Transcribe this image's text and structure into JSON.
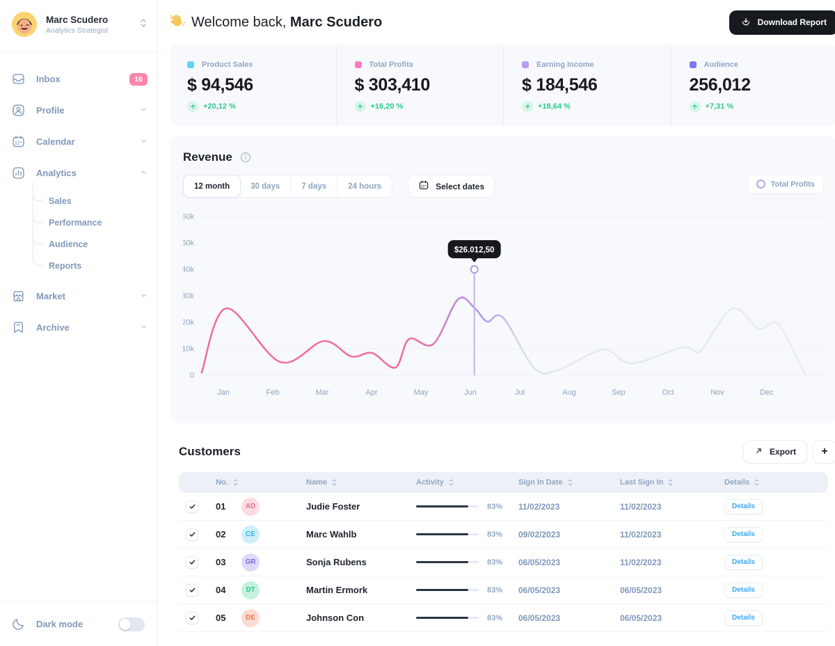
{
  "sidebar": {
    "user": {
      "name": "Marc Scudero",
      "role": "Analytics Strategist"
    },
    "items": [
      {
        "label": "Inbox",
        "badge": "16",
        "badge_color": "#f886ad"
      },
      {
        "label": "Profile"
      },
      {
        "label": "Calendar"
      },
      {
        "label": "Analytics",
        "children": [
          "Sales",
          "Performance",
          "Audience",
          "Reports"
        ]
      },
      {
        "label": "Market"
      },
      {
        "label": "Archive"
      }
    ],
    "dark_mode_label": "Dark mode"
  },
  "header": {
    "welcome_prefix": "Welcome back,",
    "user_name": "Marc Scudero",
    "download_label": "Download Report"
  },
  "stats": [
    {
      "label": "Product Sales",
      "value": "$ 94,546",
      "change": "+20,12 %",
      "dot": "#62d2f5"
    },
    {
      "label": "Total Profits",
      "value": "$ 303,410",
      "change": "+16,20 %",
      "dot": "#f97bbd"
    },
    {
      "label": "Earning Income",
      "value": "$ 184,546",
      "change": "+18,64 %",
      "dot": "#b79cf3"
    },
    {
      "label": "Audience",
      "value": "256,012",
      "change": "+7,31 %",
      "dot": "#7d79ef"
    }
  ],
  "revenue": {
    "title": "Revenue",
    "tabs": [
      {
        "label": "12 month",
        "active": true
      },
      {
        "label": "30 days",
        "active": false
      },
      {
        "label": "7 days",
        "active": false
      },
      {
        "label": "24 hours",
        "active": false
      }
    ],
    "select_dates_label": "Select dates",
    "legend_label": "Total Profits",
    "chart_data": {
      "type": "line",
      "title": "Revenue",
      "categories": [
        "Jan",
        "Feb",
        "Mar",
        "Apr",
        "May",
        "Jun",
        "Jul",
        "Aug",
        "Sep",
        "Oct",
        "Nov",
        "Dec"
      ],
      "series": [
        {
          "name": "Total Profits",
          "values_k": [
            26,
            5,
            13.5,
            8.5,
            13,
            26,
            11.5,
            2.5,
            9.5,
            10.5,
            25,
            19
          ]
        }
      ],
      "ylim_k": [
        0,
        60
      ],
      "yticks": [
        {
          "k": 0,
          "label": "0"
        },
        {
          "k": 10,
          "label": "10k"
        },
        {
          "k": 20,
          "label": "20k"
        },
        {
          "k": 30,
          "label": "30k"
        },
        {
          "k": 40,
          "label": "40k"
        },
        {
          "k": 50,
          "label": "50k"
        },
        {
          "k": 60,
          "label": "60k"
        }
      ],
      "grid": true,
      "legend_position": "top-right",
      "curve_points": [
        [
          0.56,
          1.0
        ],
        [
          1.06,
          25.3
        ],
        [
          2.15,
          5.0
        ],
        [
          3.03,
          12.9
        ],
        [
          3.59,
          7.1
        ],
        [
          4.01,
          8.4
        ],
        [
          4.48,
          2.9
        ],
        [
          4.76,
          13.7
        ],
        [
          5.25,
          11.8
        ],
        [
          5.75,
          28.7
        ],
        [
          6.08,
          25.5
        ],
        [
          6.34,
          20.3
        ],
        [
          6.66,
          21.8
        ],
        [
          7.3,
          2.6
        ],
        [
          7.79,
          2.1
        ],
        [
          8.69,
          9.7
        ],
        [
          9.27,
          4.5
        ],
        [
          10.28,
          10.5
        ],
        [
          10.56,
          8.9
        ],
        [
          10.7,
          10.0
        ],
        [
          11.31,
          25.3
        ],
        [
          11.83,
          17.6
        ],
        [
          12.23,
          19.2
        ],
        [
          12.77,
          0.5
        ]
      ],
      "gradient_stops": [
        [
          0,
          "#ef6fa5"
        ],
        [
          0.36,
          "#ef6fa5"
        ],
        [
          0.43,
          "#bb8fe0"
        ],
        [
          0.47,
          "#b49be8"
        ],
        [
          0.53,
          "#d5deed"
        ],
        [
          0.6,
          "#e2eaf2"
        ],
        [
          1,
          "#e6edf4"
        ]
      ],
      "tooltip": {
        "label": "$26.012,50",
        "month_pos": 6.08,
        "marker_k": 40,
        "bg": "#15181d",
        "line_color": "#c3b2ee"
      }
    }
  },
  "customers": {
    "title": "Customers",
    "export_label": "Export",
    "add_label": "+",
    "columns": [
      "No.",
      "Name",
      "Activity",
      "Sign In Date",
      "Last Sign In",
      "Details"
    ],
    "rows": [
      {
        "no": "01",
        "initials": "AD",
        "avatar_bg": "#fbdce2",
        "avatar_fg": "#ee6d88",
        "name": "Judie Foster",
        "activity": "83%",
        "sign_in": "11/02/2023",
        "last_sign_in": "11/02/2023",
        "details_label": "Details"
      },
      {
        "no": "02",
        "initials": "CE",
        "avatar_bg": "#cdeffb",
        "avatar_fg": "#2fb4e9",
        "name": "Marc Wahlb",
        "activity": "83%",
        "sign_in": "09/02/2023",
        "last_sign_in": "11/02/2023",
        "details_label": "Details"
      },
      {
        "no": "03",
        "initials": "GR",
        "avatar_bg": "#e0d9fa",
        "avatar_fg": "#7a68e1",
        "name": "Sonja Rubens",
        "activity": "83%",
        "sign_in": "06/05/2023",
        "last_sign_in": "11/02/2023",
        "details_label": "Details"
      },
      {
        "no": "04",
        "initials": "DT",
        "avatar_bg": "#c5f1de",
        "avatar_fg": "#2bc98d",
        "name": "Martin Ermork",
        "activity": "83%",
        "sign_in": "06/05/2023",
        "last_sign_in": "06/05/2023",
        "details_label": "Details"
      },
      {
        "no": "05",
        "initials": "DE",
        "avatar_bg": "#fcdcd2",
        "avatar_fg": "#f0764f",
        "name": "Johnson Con",
        "activity": "83%",
        "sign_in": "06/05/2023",
        "last_sign_in": "06/05/2023",
        "details_label": "Details"
      }
    ]
  }
}
